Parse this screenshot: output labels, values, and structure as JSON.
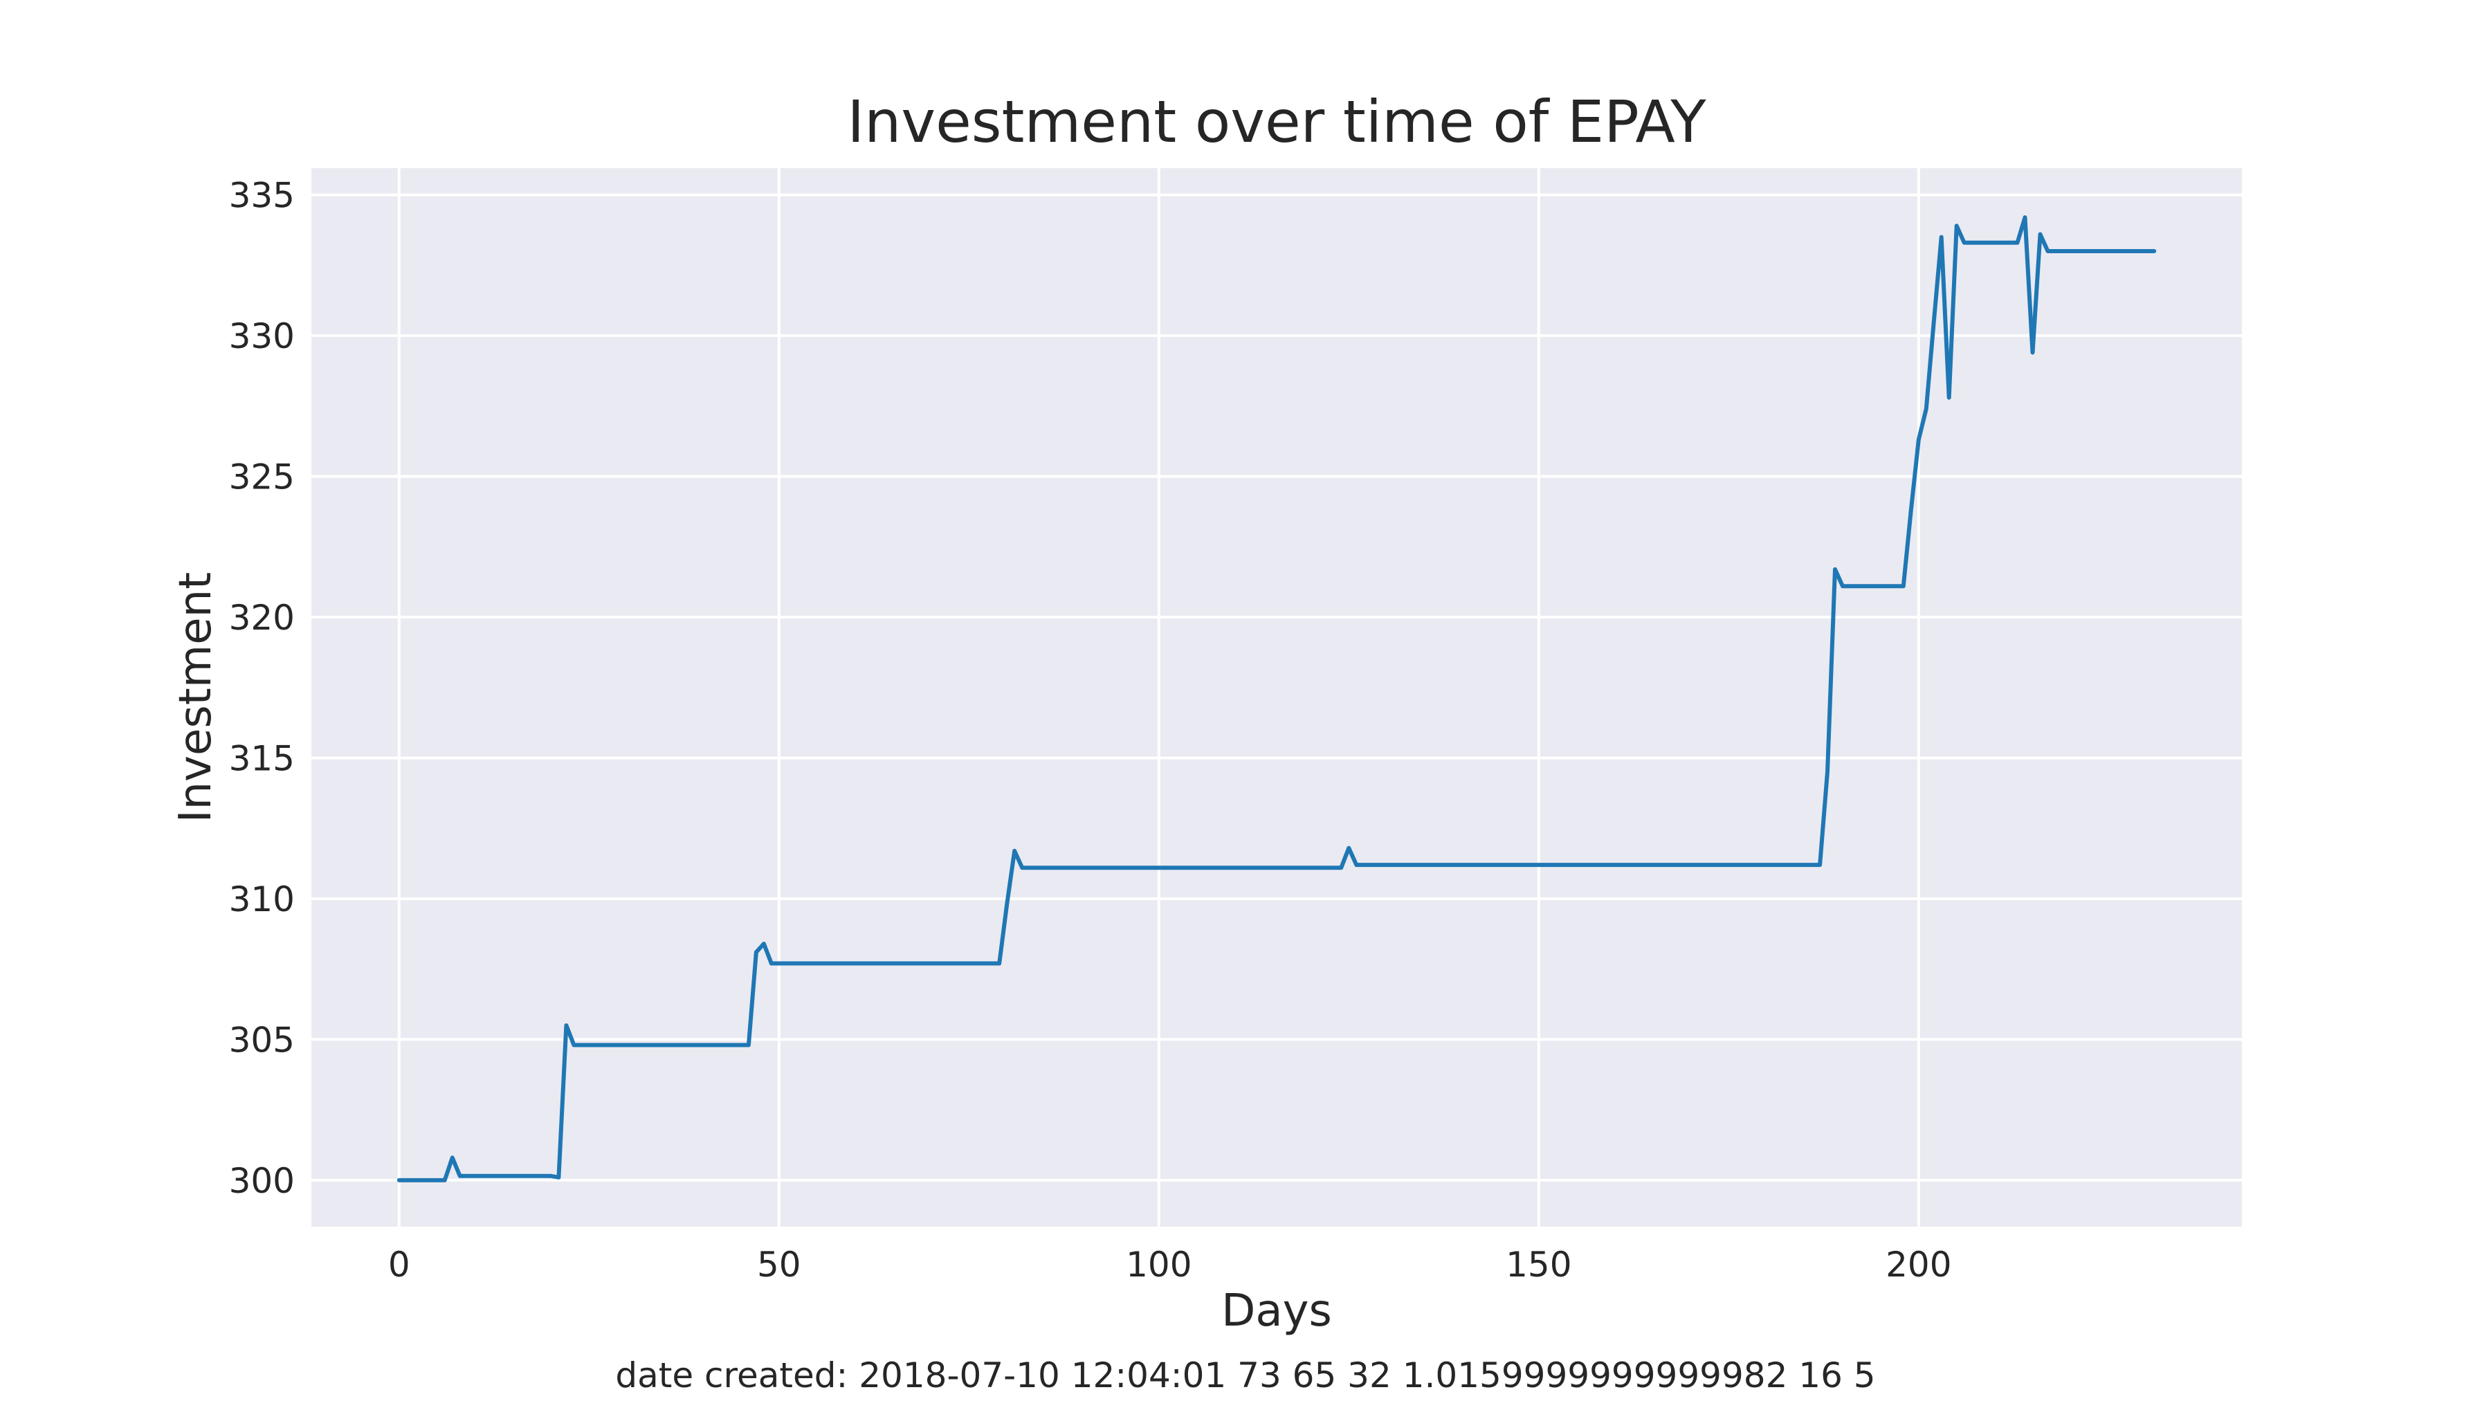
{
  "chart_data": {
    "type": "line",
    "title": "Investment over time of EPAY",
    "xlabel": "Days",
    "ylabel": "Investment",
    "footer": "date created: 2018-07-10 12:04:01 73 65 32 1.0159999999999982 16 5",
    "xlim": [
      -11.55,
      242.55
    ],
    "ylim": [
      298.35,
      335.95
    ],
    "xticks": [
      0,
      50,
      100,
      150,
      200
    ],
    "yticks": [
      300,
      305,
      310,
      315,
      320,
      325,
      330,
      335
    ],
    "xtick_labels": [
      "0",
      "50",
      "100",
      "150",
      "200"
    ],
    "ytick_labels": [
      "300",
      "305",
      "310",
      "315",
      "320",
      "325",
      "330",
      "335"
    ],
    "grid": true,
    "style": "seaborn-darkgrid",
    "colors": {
      "background": "#eaeaf2",
      "grid": "#ffffff",
      "line": "#1f77b4"
    },
    "series": [
      {
        "x": [
          0,
          6,
          7,
          8,
          20,
          21,
          22,
          23,
          46,
          47,
          48,
          49,
          79,
          80,
          81,
          82,
          124,
          125,
          126,
          187,
          188,
          189,
          190,
          198,
          199,
          200,
          201,
          202,
          203,
          204,
          205,
          206,
          213,
          214,
          215,
          216,
          217,
          231
        ],
        "y": [
          300.0,
          300.0,
          300.8,
          300.15,
          300.15,
          300.1,
          305.5,
          304.8,
          304.8,
          308.1,
          308.4,
          307.7,
          307.7,
          309.8,
          311.7,
          311.1,
          311.1,
          311.8,
          311.2,
          311.2,
          314.5,
          321.7,
          321.1,
          321.1,
          323.8,
          326.3,
          327.4,
          330.5,
          333.5,
          327.8,
          333.9,
          333.3,
          333.3,
          334.2,
          329.4,
          333.6,
          333.0,
          333.0
        ]
      }
    ]
  }
}
